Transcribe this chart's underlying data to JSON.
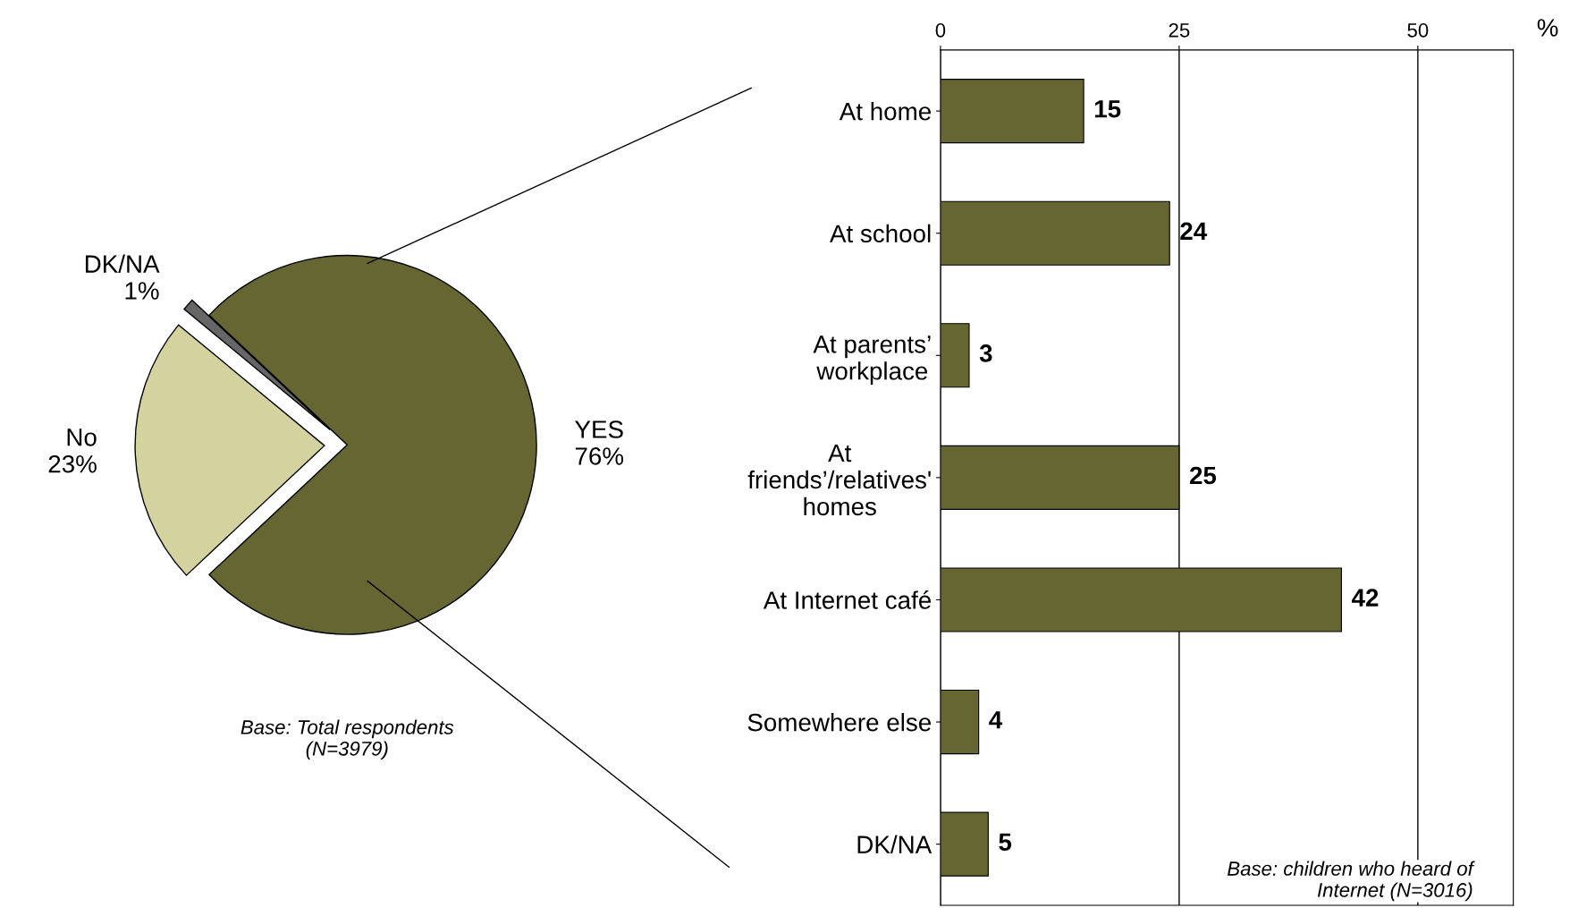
{
  "chart_data": [
    {
      "type": "pie",
      "categories": [
        "YES",
        "DK/NA",
        "No"
      ],
      "values": [
        76,
        1,
        23
      ],
      "value_labels": [
        "76%",
        "1%",
        "23%"
      ],
      "colors": [
        "#666633",
        "#666666",
        "#d4d3a0"
      ],
      "annotations": [
        "Base: Total respondents\n(N=3979)"
      ]
    },
    {
      "type": "bar",
      "orientation": "horizontal",
      "categories": [
        "At home",
        "At school",
        "At parents’\nworkplace",
        "At\nfriends’/relatives'\nhomes",
        "At Internet café",
        "Somewhere else",
        "DK/NA"
      ],
      "values": [
        15,
        24,
        3,
        25,
        42,
        4,
        5
      ],
      "color": "#666633",
      "xlim": [
        0,
        60
      ],
      "xticks": [
        0,
        25,
        50
      ],
      "xlabel": "%",
      "grid": "x",
      "data_labels": true,
      "annotations": [
        "Base: children who heard of\nInternet (N=3016)"
      ]
    }
  ]
}
